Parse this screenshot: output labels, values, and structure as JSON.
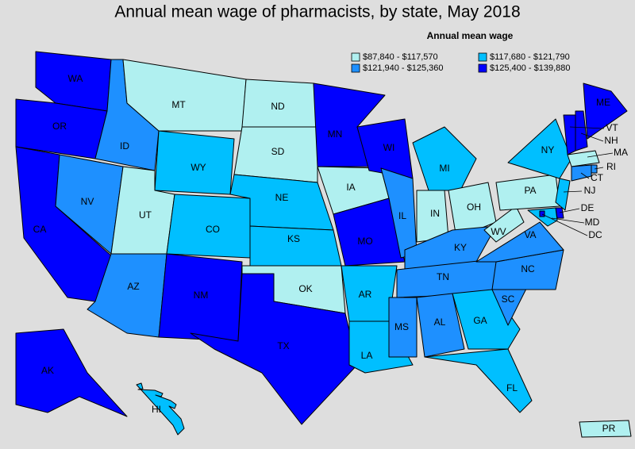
{
  "map": {
    "title": "Annual mean wage of pharmacists, by state, May 2018",
    "legend": {
      "title": "Annual mean wage",
      "classes": [
        {
          "label": "$87,840 - $117,570",
          "color": "#b0f0f0"
        },
        {
          "label": "$117,680 - $121,790",
          "color": "#00bfff"
        },
        {
          "label": "$121,940 - $125,360",
          "color": "#1e90ff"
        },
        {
          "label": "$125,400 - $139,880",
          "color": "#0000ff"
        }
      ]
    },
    "states": [
      {
        "abbr": "WA",
        "color": "#0000ff"
      },
      {
        "abbr": "OR",
        "color": "#0000ff"
      },
      {
        "abbr": "CA",
        "color": "#0000ff"
      },
      {
        "abbr": "NV",
        "color": "#1e90ff"
      },
      {
        "abbr": "ID",
        "color": "#1e90ff"
      },
      {
        "abbr": "MT",
        "color": "#b0f0f0"
      },
      {
        "abbr": "WY",
        "color": "#00bfff"
      },
      {
        "abbr": "UT",
        "color": "#b0f0f0"
      },
      {
        "abbr": "CO",
        "color": "#00bfff"
      },
      {
        "abbr": "AZ",
        "color": "#1e90ff"
      },
      {
        "abbr": "NM",
        "color": "#0000ff"
      },
      {
        "abbr": "ND",
        "color": "#b0f0f0"
      },
      {
        "abbr": "SD",
        "color": "#b0f0f0"
      },
      {
        "abbr": "NE",
        "color": "#00bfff"
      },
      {
        "abbr": "KS",
        "color": "#00bfff"
      },
      {
        "abbr": "OK",
        "color": "#b0f0f0"
      },
      {
        "abbr": "TX",
        "color": "#0000ff"
      },
      {
        "abbr": "MN",
        "color": "#0000ff"
      },
      {
        "abbr": "IA",
        "color": "#b0f0f0"
      },
      {
        "abbr": "MO",
        "color": "#0000ff"
      },
      {
        "abbr": "AR",
        "color": "#00bfff"
      },
      {
        "abbr": "LA",
        "color": "#00bfff"
      },
      {
        "abbr": "WI",
        "color": "#0000ff"
      },
      {
        "abbr": "IL",
        "color": "#1e90ff"
      },
      {
        "abbr": "MI",
        "color": "#00bfff"
      },
      {
        "abbr": "IN",
        "color": "#b0f0f0"
      },
      {
        "abbr": "OH",
        "color": "#b0f0f0"
      },
      {
        "abbr": "KY",
        "color": "#1e90ff"
      },
      {
        "abbr": "TN",
        "color": "#1e90ff"
      },
      {
        "abbr": "MS",
        "color": "#1e90ff"
      },
      {
        "abbr": "AL",
        "color": "#1e90ff"
      },
      {
        "abbr": "GA",
        "color": "#00bfff"
      },
      {
        "abbr": "FL",
        "color": "#00bfff"
      },
      {
        "abbr": "SC",
        "color": "#1e90ff"
      },
      {
        "abbr": "NC",
        "color": "#1e90ff"
      },
      {
        "abbr": "VA",
        "color": "#1e90ff"
      },
      {
        "abbr": "WV",
        "color": "#b0f0f0"
      },
      {
        "abbr": "PA",
        "color": "#b0f0f0"
      },
      {
        "abbr": "NY",
        "color": "#00bfff"
      },
      {
        "abbr": "VT",
        "color": "#0000ff"
      },
      {
        "abbr": "NH",
        "color": "#0000ff"
      },
      {
        "abbr": "ME",
        "color": "#0000ff"
      },
      {
        "abbr": "MA",
        "color": "#b0f0f0"
      },
      {
        "abbr": "RI",
        "color": "#1e90ff"
      },
      {
        "abbr": "CT",
        "color": "#1e90ff"
      },
      {
        "abbr": "NJ",
        "color": "#00bfff"
      },
      {
        "abbr": "DE",
        "color": "#0000ff"
      },
      {
        "abbr": "MD",
        "color": "#00bfff"
      },
      {
        "abbr": "DC",
        "color": "#0000ff"
      },
      {
        "abbr": "AK",
        "color": "#0000ff"
      },
      {
        "abbr": "HI",
        "color": "#00bfff"
      },
      {
        "abbr": "PR",
        "color": "#b0f0f0"
      }
    ]
  }
}
